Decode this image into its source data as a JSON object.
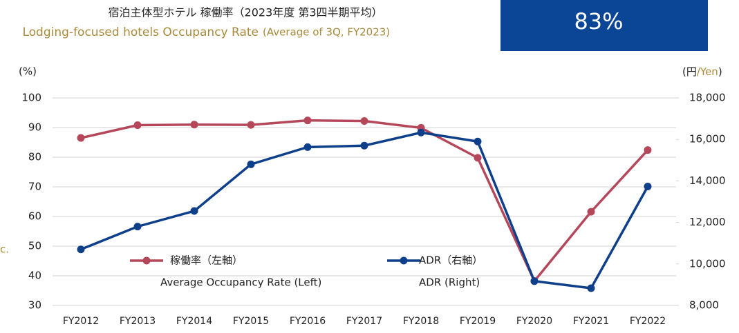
{
  "chart_data": {
    "type": "line",
    "title": "宿泊主体型ホテル 稼働率（2023年度 第3四半期平均）",
    "subtitle": "Lodging-focused hotels Occupancy Rate",
    "subtitle_note": "(Average of 3Q, FY2023)",
    "headline": "83%",
    "side_note": "c.",
    "y_label": "(%)",
    "y2_label_parts": [
      "(円",
      "/Yen",
      ")"
    ],
    "categories": [
      "FY2012",
      "FY2013",
      "FY2014",
      "FY2015",
      "FY2016",
      "FY2017",
      "FY2018",
      "FY2019",
      "FY2020",
      "FY2021",
      "FY2022"
    ],
    "series": [
      {
        "name": "稼働率（左軸）",
        "name_en": "Average Occupancy Rate (Left)",
        "color": "#b5475a",
        "values": [
          86.5,
          90.8,
          91.0,
          90.9,
          92.4,
          92.2,
          89.9,
          79.8,
          38.2,
          61.6,
          82.4
        ]
      },
      {
        "name": "ADR（右軸）",
        "name_en": "ADR (Right)",
        "color": "#0d3f8a",
        "axis": "y2",
        "values": [
          10700,
          11800,
          12550,
          14800,
          15630,
          15700,
          16330,
          15900,
          9170,
          8830,
          13730
        ]
      }
    ],
    "ylim": [
      30,
      100
    ],
    "yticks": [
      30,
      40,
      50,
      60,
      70,
      80,
      90,
      100
    ],
    "y2lim": [
      8000,
      18000
    ],
    "y2ticks": [
      {
        "value": 8000,
        "label": "8,000"
      },
      {
        "value": 10000,
        "label": "10,000"
      },
      {
        "value": 12000,
        "label": "12,000"
      },
      {
        "value": 14000,
        "label": "14,000"
      },
      {
        "value": 16000,
        "label": "16,000"
      },
      {
        "value": 18000,
        "label": "18,000"
      }
    ],
    "grid": true
  }
}
